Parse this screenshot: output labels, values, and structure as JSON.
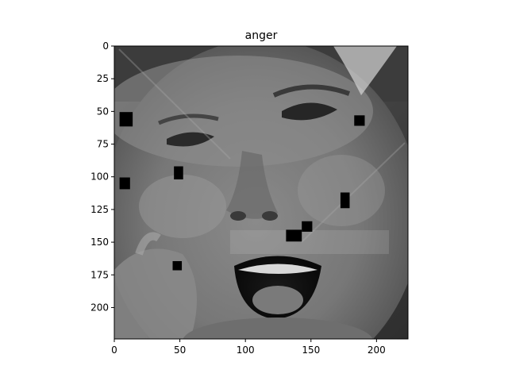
{
  "figure": {
    "title": "anger"
  },
  "image": {
    "description_kind": "grayscale face photo",
    "extent": {
      "x": [
        0,
        224
      ],
      "y": [
        0,
        224
      ]
    }
  },
  "axes": {
    "x_ticks": [
      0,
      50,
      100,
      150,
      200
    ],
    "y_ticks": [
      0,
      25,
      50,
      75,
      100,
      125,
      150,
      175,
      200
    ],
    "x_tick_labels": [
      "0",
      "50",
      "100",
      "150",
      "200"
    ],
    "y_tick_labels": [
      "0",
      "25",
      "50",
      "75",
      "100",
      "125",
      "150",
      "175",
      "200"
    ]
  },
  "occlusion_patches": [
    {
      "x": 9,
      "y": 56,
      "w": 10,
      "h": 11
    },
    {
      "x": 8,
      "y": 105,
      "w": 8,
      "h": 9
    },
    {
      "x": 49,
      "y": 97,
      "w": 7,
      "h": 10
    },
    {
      "x": 48,
      "y": 168,
      "w": 7,
      "h": 7
    },
    {
      "x": 137,
      "y": 145,
      "w": 12,
      "h": 9
    },
    {
      "x": 147,
      "y": 138,
      "w": 8,
      "h": 8
    },
    {
      "x": 176,
      "y": 118,
      "w": 7,
      "h": 12
    },
    {
      "x": 187,
      "y": 57,
      "w": 8,
      "h": 8
    }
  ],
  "colors": {
    "patch": "#000000",
    "axis": "#000000"
  }
}
